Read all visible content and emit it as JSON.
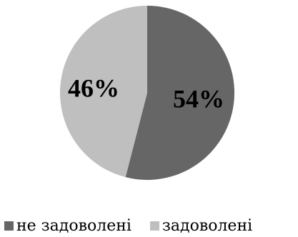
{
  "chart_data": {
    "type": "pie",
    "title": "",
    "slices": [
      {
        "name": "не задоволені",
        "value": 54,
        "label": "54%",
        "color": "#666666"
      },
      {
        "name": "задоволені",
        "value": 46,
        "label": "46%",
        "color": "#bfbfbf"
      }
    ],
    "start_angle_deg": 0,
    "direction": "clockwise",
    "legend_position": "bottom"
  }
}
